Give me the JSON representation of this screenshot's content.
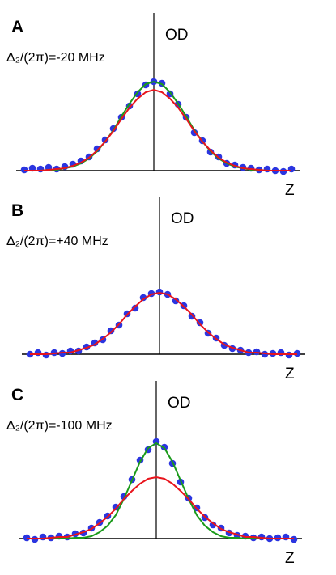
{
  "chart_data": [
    {
      "type": "scatter",
      "panel_label": "A",
      "subtitle": "Δ₂/(2π)=-20 MHz",
      "ylabel": "OD",
      "xlabel": "Z",
      "xlim": [
        -1.7,
        1.8
      ],
      "ylim": [
        0,
        1.95
      ],
      "x": [
        -1.6,
        -1.5,
        -1.4,
        -1.3,
        -1.2,
        -1.1,
        -1.0,
        -0.9,
        -0.8,
        -0.7,
        -0.6,
        -0.5,
        -0.4,
        -0.3,
        -0.2,
        -0.1,
        0,
        0.1,
        0.2,
        0.3,
        0.4,
        0.5,
        0.6,
        0.7,
        0.8,
        0.9,
        1.0,
        1.1,
        1.2,
        1.3,
        1.4,
        1.5,
        1.6,
        1.7
      ],
      "series": [
        {
          "type": "scatter",
          "color": "#2b35e0",
          "values": [
            0.01,
            0.03,
            0.02,
            0.04,
            0.02,
            0.05,
            0.08,
            0.12,
            0.17,
            0.27,
            0.38,
            0.52,
            0.66,
            0.8,
            0.95,
            1.06,
            1.1,
            1.08,
            0.95,
            0.82,
            0.66,
            0.47,
            0.37,
            0.23,
            0.17,
            0.09,
            0.07,
            0.04,
            0.03,
            0.01,
            0.02,
            0,
            -0.01,
            0.02
          ]
        },
        {
          "type": "line",
          "color": "#1a9a1a",
          "values": [
            0,
            0,
            0,
            0.01,
            0.01,
            0.03,
            0.05,
            0.09,
            0.15,
            0.24,
            0.36,
            0.5,
            0.67,
            0.83,
            0.97,
            1.07,
            1.1,
            1.07,
            0.97,
            0.83,
            0.67,
            0.5,
            0.36,
            0.24,
            0.15,
            0.09,
            0.05,
            0.03,
            0.01,
            0.01,
            0,
            0,
            0,
            0
          ]
        },
        {
          "type": "line",
          "color": "#e8141c",
          "values": [
            0,
            0,
            0,
            0.01,
            0.02,
            0.03,
            0.06,
            0.1,
            0.16,
            0.25,
            0.36,
            0.49,
            0.64,
            0.78,
            0.89,
            0.97,
            1,
            0.97,
            0.89,
            0.78,
            0.64,
            0.49,
            0.36,
            0.25,
            0.16,
            0.1,
            0.06,
            0.03,
            0.02,
            0.01,
            0,
            0,
            0,
            0
          ]
        }
      ]
    },
    {
      "type": "scatter",
      "panel_label": "B",
      "subtitle": "Δ₂/(2π)=+40 MHz",
      "ylabel": "OD",
      "xlabel": "Z",
      "xlim": [
        -1.7,
        1.8
      ],
      "ylim": [
        0,
        1.95
      ],
      "x": [
        -1.6,
        -1.5,
        -1.4,
        -1.3,
        -1.2,
        -1.1,
        -1.0,
        -0.9,
        -0.8,
        -0.7,
        -0.6,
        -0.5,
        -0.4,
        -0.3,
        -0.2,
        -0.1,
        0,
        0.1,
        0.2,
        0.3,
        0.4,
        0.5,
        0.6,
        0.7,
        0.8,
        0.9,
        1.0,
        1.1,
        1.2,
        1.3,
        1.4,
        1.5,
        1.6,
        1.7
      ],
      "series": [
        {
          "type": "scatter",
          "color": "#2b35e0",
          "values": [
            0,
            0.02,
            -0.01,
            0.02,
            0.01,
            0.04,
            0.04,
            0.09,
            0.14,
            0.18,
            0.29,
            0.36,
            0.5,
            0.57,
            0.7,
            0.75,
            0.77,
            0.74,
            0.66,
            0.6,
            0.47,
            0.39,
            0.26,
            0.2,
            0.11,
            0.07,
            0.05,
            0.02,
            0.03,
            0,
            0.01,
            0.02,
            -0.01,
            0.01
          ]
        },
        {
          "type": "line",
          "color": "#e8141c",
          "values": [
            0,
            0,
            0,
            0.01,
            0.02,
            0.02,
            0.05,
            0.08,
            0.12,
            0.19,
            0.27,
            0.37,
            0.49,
            0.59,
            0.68,
            0.74,
            0.76,
            0.74,
            0.68,
            0.59,
            0.49,
            0.37,
            0.27,
            0.19,
            0.12,
            0.08,
            0.05,
            0.02,
            0.02,
            0.01,
            0,
            0,
            0,
            0
          ]
        }
      ]
    },
    {
      "type": "scatter",
      "panel_label": "C",
      "subtitle": "Δ₂/(2π)=-100 MHz",
      "ylabel": "OD",
      "xlabel": "Z",
      "xlim": [
        -1.7,
        1.8
      ],
      "ylim": [
        0,
        1.95
      ],
      "x": [
        -1.6,
        -1.5,
        -1.4,
        -1.3,
        -1.2,
        -1.1,
        -1.0,
        -0.9,
        -0.8,
        -0.7,
        -0.6,
        -0.5,
        -0.4,
        -0.3,
        -0.2,
        -0.1,
        0,
        0.1,
        0.2,
        0.3,
        0.4,
        0.5,
        0.6,
        0.7,
        0.8,
        0.9,
        1.0,
        1.1,
        1.2,
        1.3,
        1.4,
        1.5,
        1.6,
        1.7
      ],
      "series": [
        {
          "type": "scatter",
          "color": "#2b35e0",
          "values": [
            0.01,
            -0.01,
            0.02,
            0.01,
            0.03,
            0.02,
            0.06,
            0.07,
            0.13,
            0.2,
            0.28,
            0.39,
            0.52,
            0.73,
            0.97,
            1.1,
            1.2,
            1.13,
            0.93,
            0.7,
            0.5,
            0.38,
            0.26,
            0.17,
            0.13,
            0.07,
            0.04,
            0.03,
            0.01,
            0.02,
            0,
            0.01,
            0.02,
            -0.01
          ]
        },
        {
          "type": "line",
          "color": "#1a9a1a",
          "values": [
            0,
            0,
            0,
            0,
            0,
            0,
            0.01,
            0.01,
            0.03,
            0.08,
            0.16,
            0.29,
            0.49,
            0.72,
            0.95,
            1.12,
            1.18,
            1.12,
            0.95,
            0.72,
            0.49,
            0.29,
            0.16,
            0.08,
            0.03,
            0.01,
            0.01,
            0,
            0,
            0,
            0,
            0,
            0,
            0
          ]
        },
        {
          "type": "line",
          "color": "#e8141c",
          "values": [
            0,
            0,
            0,
            0.01,
            0.02,
            0.02,
            0.05,
            0.08,
            0.12,
            0.19,
            0.27,
            0.37,
            0.49,
            0.59,
            0.68,
            0.74,
            0.76,
            0.74,
            0.68,
            0.59,
            0.49,
            0.37,
            0.27,
            0.19,
            0.12,
            0.08,
            0.05,
            0.02,
            0.02,
            0.01,
            0,
            0,
            0,
            0
          ]
        }
      ]
    }
  ]
}
